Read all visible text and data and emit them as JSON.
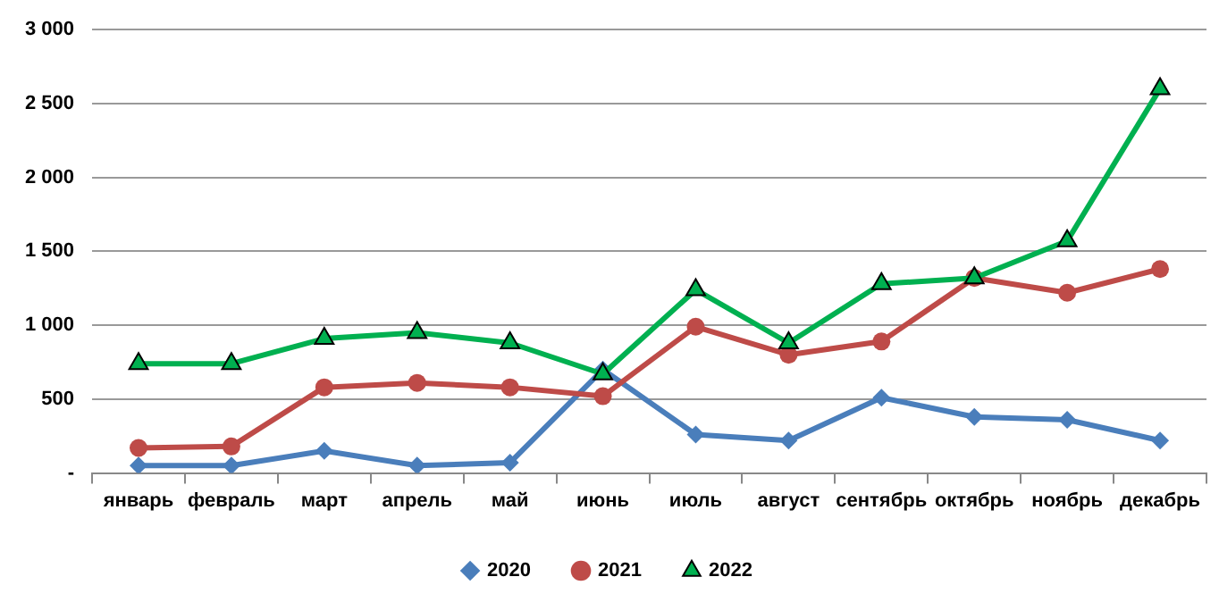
{
  "chart_data": {
    "type": "line",
    "categories": [
      "январь",
      "февраль",
      "март",
      "апрель",
      "май",
      "июнь",
      "июль",
      "август",
      "сентябрь",
      "октябрь",
      "ноябрь",
      "декабрь"
    ],
    "series": [
      {
        "name": "2020",
        "color": "#4a7ebb",
        "marker": "diamond",
        "values": [
          50,
          50,
          150,
          50,
          70,
          700,
          260,
          220,
          510,
          380,
          360,
          220
        ]
      },
      {
        "name": "2021",
        "color": "#be4b48",
        "marker": "circle",
        "values": [
          170,
          180,
          580,
          610,
          580,
          520,
          990,
          800,
          890,
          1320,
          1220,
          1380
        ]
      },
      {
        "name": "2022",
        "color": "#00b050",
        "marker": "triangle",
        "values": [
          740,
          740,
          910,
          950,
          880,
          670,
          1240,
          880,
          1280,
          1320,
          1570,
          2600
        ]
      }
    ],
    "ylim": [
      0,
      3000
    ],
    "yticks": [
      {
        "value": 0,
        "label": "-"
      },
      {
        "value": 500,
        "label": "500"
      },
      {
        "value": 1000,
        "label": "1 000"
      },
      {
        "value": 1500,
        "label": "1 500"
      },
      {
        "value": 2000,
        "label": "2 000"
      },
      {
        "value": 2500,
        "label": "2 500"
      },
      {
        "value": 3000,
        "label": "3 000"
      }
    ],
    "grid": "y",
    "legend": "bottom",
    "line_style": "solid"
  }
}
